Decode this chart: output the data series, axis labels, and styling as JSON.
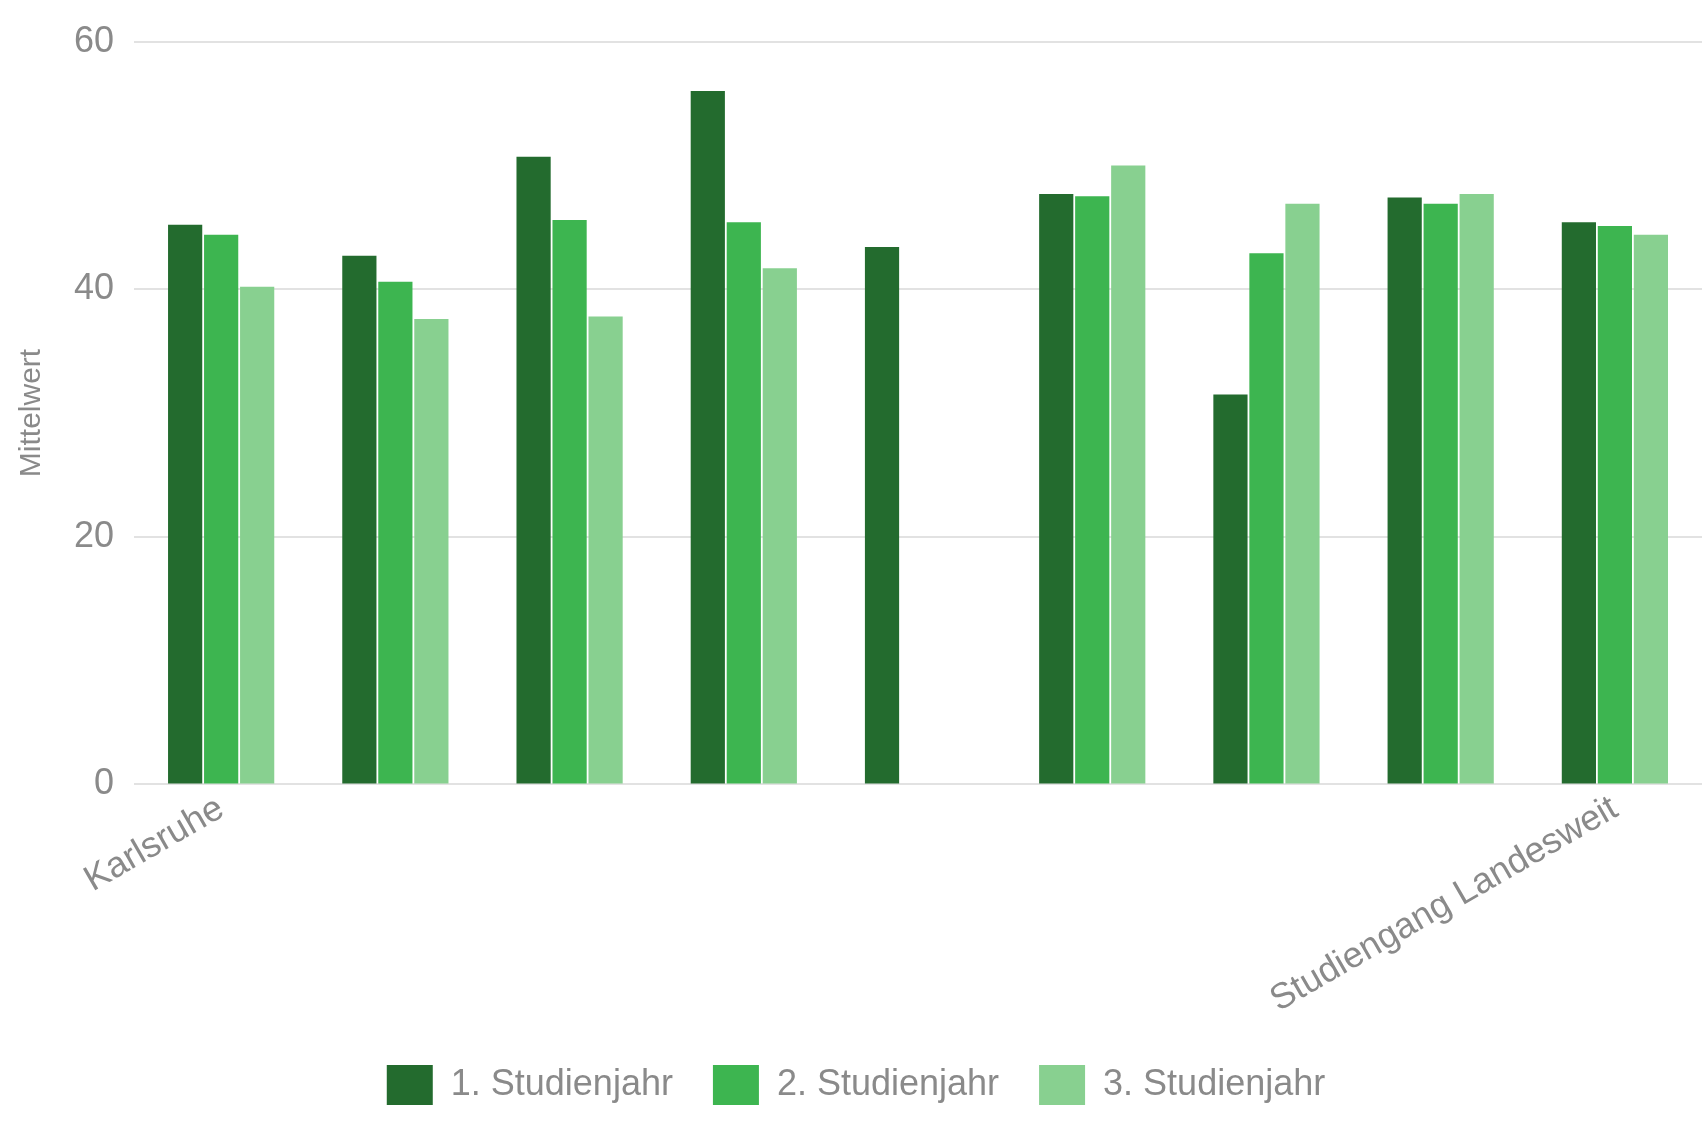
{
  "chart_data": {
    "type": "bar",
    "ylabel": "Mittelwert",
    "categories": [
      "Karlsruhe",
      null,
      null,
      null,
      null,
      null,
      null,
      null,
      "Studiengang Landesweit"
    ],
    "series": [
      {
        "name": "1. Studienjahr",
        "color": "#236b2e",
        "values": [
          45.2,
          42.7,
          50.7,
          56.0,
          43.4,
          47.7,
          31.5,
          47.4,
          45.4
        ]
      },
      {
        "name": "2. Studienjahr",
        "color": "#3db550",
        "values": [
          44.4,
          40.6,
          45.6,
          45.4,
          null,
          47.5,
          42.9,
          46.9,
          45.1
        ]
      },
      {
        "name": "3. Studienjahr",
        "color": "#88d090",
        "values": [
          40.2,
          37.6,
          37.8,
          41.7,
          null,
          50.0,
          46.9,
          47.7,
          44.4
        ]
      }
    ],
    "ylim": [
      0,
      60
    ],
    "yticks": [
      0,
      20,
      40,
      60
    ],
    "grid": "y",
    "legend": "bottom"
  }
}
